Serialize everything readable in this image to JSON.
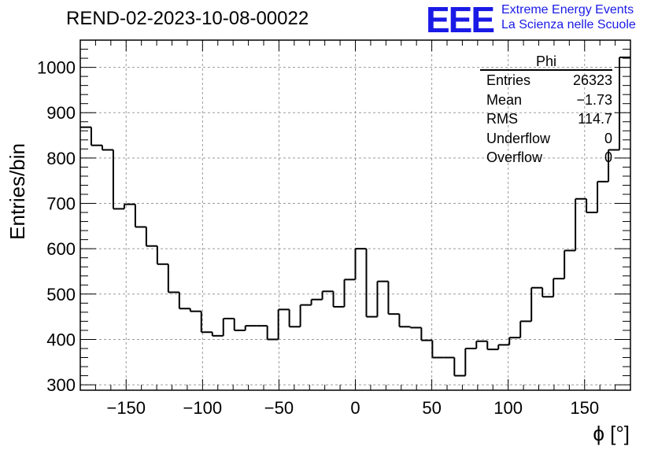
{
  "title": "REND-02-2023-10-08-00022",
  "logo": {
    "mark": "EEE",
    "line1": "Extreme Energy Events",
    "line2": "La Scienza nelle Scuole",
    "color": "#1a1ae6"
  },
  "stats": {
    "name": "Phi",
    "rows": [
      {
        "label": "Entries",
        "value": "26323"
      },
      {
        "label": "Mean",
        "value": "−1.73"
      },
      {
        "label": "RMS",
        "value": "114.7"
      },
      {
        "label": "Underflow",
        "value": "0"
      },
      {
        "label": "Overflow",
        "value": "0"
      }
    ]
  },
  "chart_data": {
    "type": "bar",
    "style": "step-histogram",
    "xlabel": "ϕ [°]",
    "ylabel": "Entries/bin",
    "xlim": [
      -180,
      180
    ],
    "ylim": [
      288,
      1060
    ],
    "bin_width": 7.2,
    "grid": true,
    "xticks": [
      -150,
      -100,
      -50,
      0,
      50,
      100,
      150
    ],
    "yticks": [
      300,
      400,
      500,
      600,
      700,
      800,
      900,
      1000
    ],
    "xtick_labels": [
      "−150",
      "−100",
      "−50",
      "0",
      "50",
      "100",
      "150"
    ],
    "ytick_labels": [
      "300",
      "400",
      "500",
      "600",
      "700",
      "800",
      "900",
      "1000"
    ],
    "values": [
      868,
      828,
      818,
      688,
      698,
      648,
      606,
      566,
      504,
      468,
      462,
      416,
      408,
      446,
      420,
      430,
      430,
      400,
      466,
      428,
      476,
      488,
      506,
      472,
      532,
      600,
      450,
      528,
      456,
      428,
      426,
      398,
      360,
      360,
      320,
      380,
      396,
      378,
      388,
      404,
      440,
      514,
      494,
      534,
      596,
      710,
      680,
      748,
      818,
      1022
    ]
  }
}
